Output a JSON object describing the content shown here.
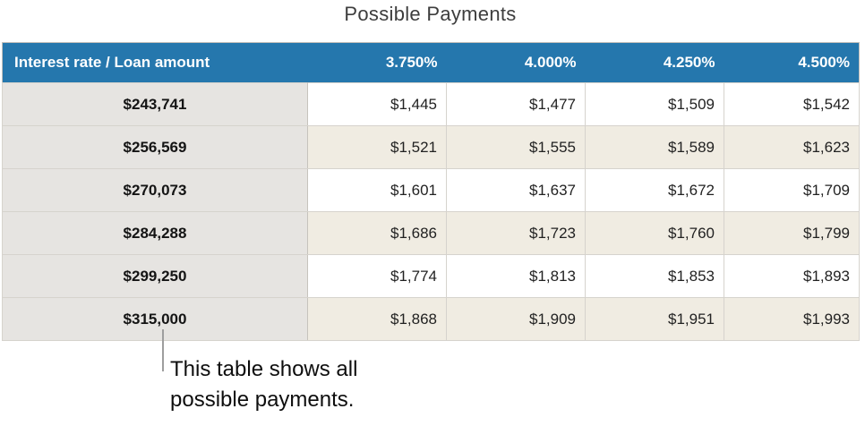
{
  "title": "Possible Payments",
  "table": {
    "header": {
      "corner": "Interest rate / Loan amount",
      "rates": [
        "3.750%",
        "4.000%",
        "4.250%",
        "4.500%"
      ]
    },
    "rows": [
      {
        "loan": "$243,741",
        "payments": [
          "$1,445",
          "$1,477",
          "$1,509",
          "$1,542"
        ]
      },
      {
        "loan": "$256,569",
        "payments": [
          "$1,521",
          "$1,555",
          "$1,589",
          "$1,623"
        ]
      },
      {
        "loan": "$270,073",
        "payments": [
          "$1,601",
          "$1,637",
          "$1,672",
          "$1,709"
        ]
      },
      {
        "loan": "$284,288",
        "payments": [
          "$1,686",
          "$1,723",
          "$1,760",
          "$1,799"
        ]
      },
      {
        "loan": "$299,250",
        "payments": [
          "$1,774",
          "$1,813",
          "$1,853",
          "$1,893"
        ]
      },
      {
        "loan": "$315,000",
        "payments": [
          "$1,868",
          "$1,909",
          "$1,951",
          "$1,993"
        ]
      }
    ]
  },
  "caption": {
    "text": "This table shows all\npossible payments."
  },
  "colors": {
    "header_bg": "#2577ad",
    "row_header_bg": "#e6e4e1",
    "stripe_bg": "#f0ece2",
    "callout_line": "#9e9e9e"
  }
}
